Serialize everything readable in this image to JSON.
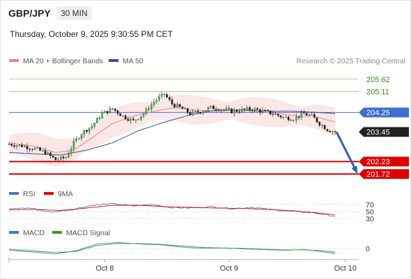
{
  "header": {
    "symbol": "GBP/JPY",
    "timeframe": "30 MIN",
    "datetime": "Thursday, October 9, 2025 9:30:55 PM CET",
    "credit": "Research © 2025 Trading Central"
  },
  "chart_data": [
    {
      "type": "candlestick",
      "panel": "price",
      "legend": [
        {
          "name": "MA 20 + Bollinger Bands",
          "color": "#f08080"
        },
        {
          "name": "MA 50",
          "color": "#2f5597"
        }
      ],
      "x_ticks": [
        {
          "label": "Oct 8",
          "index": 37
        },
        {
          "label": "Oct 9",
          "index": 85
        },
        {
          "label": "Oct 10",
          "index": 130
        }
      ],
      "ylim": [
        201.35,
        206.1
      ],
      "levels": [
        {
          "value": 205.62,
          "label": "205.62",
          "kind": "resistance"
        },
        {
          "value": 205.11,
          "label": "205.11",
          "kind": "resistance"
        },
        {
          "value": 204.25,
          "label": "204.25",
          "kind": "pivot"
        },
        {
          "value": 203.45,
          "label": "203.45",
          "kind": "last"
        },
        {
          "value": 202.23,
          "label": "202.23",
          "kind": "support"
        },
        {
          "value": 201.72,
          "label": "201.72",
          "kind": "support"
        }
      ],
      "forecast": {
        "from_value": 203.45,
        "to_value": 201.72,
        "direction": "down"
      },
      "anchors": [
        [
          0,
          202.95
        ],
        [
          5,
          202.88
        ],
        [
          10,
          202.75
        ],
        [
          14,
          202.6
        ],
        [
          18,
          202.3
        ],
        [
          22,
          202.4
        ],
        [
          25,
          203.0
        ],
        [
          28,
          203.4
        ],
        [
          32,
          203.7
        ],
        [
          36,
          204.2
        ],
        [
          40,
          204.4
        ],
        [
          44,
          204.1
        ],
        [
          48,
          203.9
        ],
        [
          52,
          204.2
        ],
        [
          56,
          204.7
        ],
        [
          60,
          205.0
        ],
        [
          63,
          204.6
        ],
        [
          67,
          204.4
        ],
        [
          70,
          204.2
        ],
        [
          74,
          204.3
        ],
        [
          78,
          204.45
        ],
        [
          82,
          204.4
        ],
        [
          86,
          204.3
        ],
        [
          90,
          204.35
        ],
        [
          94,
          204.4
        ],
        [
          98,
          204.3
        ],
        [
          102,
          204.2
        ],
        [
          106,
          204.05
        ],
        [
          110,
          204.0
        ],
        [
          114,
          204.2
        ],
        [
          117,
          204.1
        ],
        [
          120,
          203.8
        ],
        [
          123,
          203.55
        ],
        [
          126,
          203.45
        ]
      ],
      "ma20": [
        [
          0,
          203.0
        ],
        [
          10,
          202.85
        ],
        [
          18,
          202.6
        ],
        [
          25,
          202.7
        ],
        [
          32,
          203.2
        ],
        [
          40,
          203.8
        ],
        [
          48,
          204.1
        ],
        [
          56,
          204.3
        ],
        [
          64,
          204.45
        ],
        [
          72,
          204.35
        ],
        [
          80,
          204.3
        ],
        [
          88,
          204.35
        ],
        [
          96,
          204.3
        ],
        [
          104,
          204.2
        ],
        [
          112,
          204.1
        ],
        [
          118,
          204.1
        ],
        [
          126,
          203.85
        ]
      ],
      "ma50": [
        [
          0,
          202.6
        ],
        [
          20,
          202.5
        ],
        [
          30,
          202.7
        ],
        [
          40,
          203.0
        ],
        [
          50,
          203.5
        ],
        [
          60,
          203.85
        ],
        [
          70,
          204.15
        ],
        [
          80,
          204.35
        ],
        [
          90,
          204.35
        ],
        [
          100,
          204.3
        ],
        [
          110,
          204.3
        ],
        [
          120,
          204.25
        ],
        [
          126,
          204.2
        ]
      ]
    },
    {
      "type": "line",
      "panel": "rsi",
      "legend": [
        {
          "name": "RSI",
          "color": "#4a74d9"
        },
        {
          "name": "9MA",
          "color": "#e00000"
        }
      ],
      "y_ticks": [
        70,
        50,
        30
      ],
      "ylim": [
        20,
        80
      ],
      "rsi": [
        [
          0,
          58
        ],
        [
          8,
          60
        ],
        [
          16,
          48
        ],
        [
          24,
          55
        ],
        [
          32,
          68
        ],
        [
          40,
          72
        ],
        [
          48,
          66
        ],
        [
          56,
          70
        ],
        [
          62,
          62
        ],
        [
          70,
          60
        ],
        [
          78,
          64
        ],
        [
          86,
          58
        ],
        [
          94,
          62
        ],
        [
          102,
          55
        ],
        [
          110,
          50
        ],
        [
          118,
          46
        ],
        [
          126,
          36
        ]
      ],
      "ma9": [
        [
          0,
          55
        ],
        [
          10,
          56
        ],
        [
          20,
          53
        ],
        [
          30,
          60
        ],
        [
          40,
          68
        ],
        [
          50,
          68
        ],
        [
          60,
          64
        ],
        [
          70,
          62
        ],
        [
          80,
          60
        ],
        [
          90,
          59
        ],
        [
          100,
          56
        ],
        [
          110,
          52
        ],
        [
          118,
          47
        ],
        [
          126,
          40
        ]
      ]
    },
    {
      "type": "line",
      "panel": "macd",
      "legend": [
        {
          "name": "MACD",
          "color": "#4a74d9"
        },
        {
          "name": "MACD Signal",
          "color": "#3a9a1a"
        }
      ],
      "y_ticks": [
        0
      ],
      "ylim": [
        -0.3,
        0.3
      ],
      "macd": [
        [
          0,
          -0.05
        ],
        [
          10,
          -0.1
        ],
        [
          18,
          -0.15
        ],
        [
          26,
          -0.06
        ],
        [
          34,
          0.12
        ],
        [
          42,
          0.16
        ],
        [
          50,
          0.12
        ],
        [
          58,
          0.1
        ],
        [
          66,
          0.04
        ],
        [
          74,
          0.0
        ],
        [
          82,
          0.01
        ],
        [
          90,
          -0.01
        ],
        [
          98,
          -0.03
        ],
        [
          106,
          -0.05
        ],
        [
          114,
          -0.03
        ],
        [
          120,
          -0.08
        ],
        [
          126,
          -0.14
        ]
      ],
      "signal": [
        [
          0,
          -0.02
        ],
        [
          10,
          -0.07
        ],
        [
          18,
          -0.11
        ],
        [
          26,
          -0.08
        ],
        [
          34,
          0.08
        ],
        [
          42,
          0.13
        ],
        [
          50,
          0.13
        ],
        [
          58,
          0.11
        ],
        [
          66,
          0.07
        ],
        [
          74,
          0.03
        ],
        [
          82,
          0.01
        ],
        [
          90,
          0.0
        ],
        [
          98,
          -0.02
        ],
        [
          106,
          -0.04
        ],
        [
          114,
          -0.04
        ],
        [
          120,
          -0.06
        ],
        [
          126,
          -0.1
        ]
      ]
    }
  ]
}
